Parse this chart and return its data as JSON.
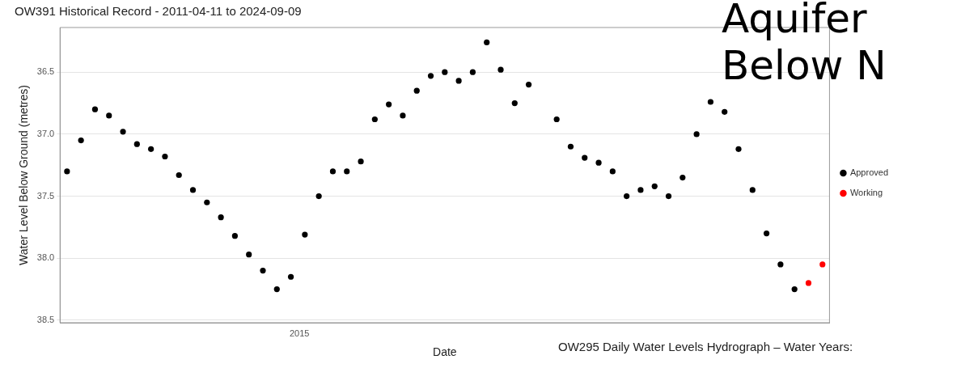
{
  "chart_data": {
    "type": "scatter",
    "title": "OW391 Historical Record - 2011-04-11 to 2024-09-09",
    "xlabel": "Date",
    "ylabel": "Water Level Below Ground (metres)",
    "annotations": [
      "Aquifer",
      "Below N",
      "OW295 Daily Water Levels Hydrograph – Water Years:",
      "2015"
    ],
    "categories": [
      null,
      null,
      null,
      null,
      null,
      null,
      null,
      null,
      null,
      null,
      null,
      null,
      null,
      null,
      null,
      null,
      null,
      null,
      null,
      null,
      null,
      null,
      null,
      null,
      null,
      null,
      null,
      null,
      null,
      null,
      null,
      null,
      null,
      null,
      null,
      null,
      null,
      null,
      null,
      null,
      null,
      null,
      null,
      null,
      null,
      null,
      null,
      null,
      null,
      null,
      null,
      null,
      null,
      null,
      null
    ],
    "series": [
      {
        "name": "Approved",
        "color": "#000000",
        "values": [
          37.3,
          37.05,
          36.8,
          36.85,
          36.98,
          37.08,
          37.12,
          37.18,
          37.33,
          37.45,
          37.55,
          37.67,
          37.82,
          37.97,
          38.1,
          38.25,
          38.15,
          37.81,
          37.5,
          37.3,
          37.3,
          37.22,
          36.88,
          36.76,
          36.85,
          36.65,
          36.53,
          36.5,
          36.57,
          36.5,
          36.26,
          36.48,
          36.75,
          36.6,
          null,
          36.88,
          37.1,
          37.19,
          37.23,
          37.3,
          37.5,
          37.45,
          37.42,
          37.5,
          37.35,
          37.0,
          36.74,
          36.82,
          37.12,
          37.45,
          37.8,
          38.05,
          38.25,
          null,
          null
        ]
      },
      {
        "name": "Working",
        "color": "#ff0000",
        "values": [
          null,
          null,
          null,
          null,
          null,
          null,
          null,
          null,
          null,
          null,
          null,
          null,
          null,
          null,
          null,
          null,
          null,
          null,
          null,
          null,
          null,
          null,
          null,
          null,
          null,
          null,
          null,
          null,
          null,
          null,
          null,
          null,
          null,
          null,
          null,
          null,
          null,
          null,
          null,
          null,
          null,
          null,
          null,
          null,
          null,
          null,
          null,
          null,
          null,
          null,
          null,
          null,
          null,
          38.2,
          38.05
        ]
      }
    ],
    "ylim": [
      38.52,
      36.14
    ],
    "yticks": [
      {
        "value": 36.5,
        "label": "36.5"
      },
      {
        "value": 37,
        "label": "37.0"
      },
      {
        "value": 37.5,
        "label": "37.5"
      },
      {
        "value": 38,
        "label": "38.0"
      },
      {
        "value": 38.5,
        "label": "38.5"
      }
    ],
    "grid": "y",
    "legend": "right",
    "marker": "circle"
  }
}
